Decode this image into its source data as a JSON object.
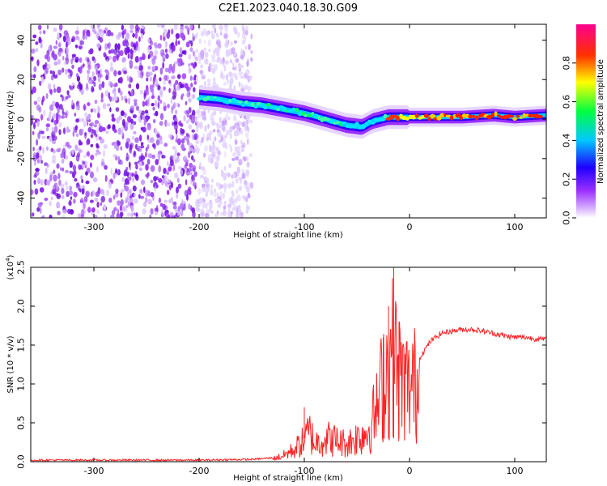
{
  "title": "C2E1.2023.040.18.30.G09",
  "chart_data": [
    {
      "type": "heatmap",
      "xlabel": "Height of straight line (km)",
      "ylabel": "Frequency (Hz)",
      "xlim": [
        -360,
        130
      ],
      "ylim": [
        -50,
        48
      ],
      "x_ticks": [
        -300,
        -200,
        -100,
        0,
        100
      ],
      "x_tick_labels": [
        "-300",
        "-200",
        "-100",
        "0",
        "100"
      ],
      "y_ticks": [
        -40,
        -20,
        0,
        20,
        40
      ],
      "y_tick_labels": [
        "-40",
        "-20",
        "0",
        "20",
        "40"
      ],
      "colorbar": {
        "label": "Normalized spectral amplitude",
        "range": [
          0,
          1
        ],
        "ticks": [
          0,
          0.2,
          0.4,
          0.6,
          0.8
        ],
        "tick_labels": [
          "0.0",
          "0.2",
          "0.4",
          "0.6",
          "0.8"
        ],
        "colors": [
          "#ffffff",
          "#9b30ff",
          "#0000ff",
          "#00e5ff",
          "#00ff00",
          "#ffff00",
          "#ff0000",
          "#ff0080"
        ]
      },
      "ridge": {
        "x": [
          -200,
          -180,
          -160,
          -140,
          -120,
          -100,
          -80,
          -60,
          -45,
          -35,
          -20,
          0,
          20,
          50,
          80,
          100,
          130
        ],
        "y": [
          11,
          10,
          8,
          7,
          5,
          3,
          0,
          -3,
          -4,
          -1,
          1,
          1,
          1,
          1,
          2,
          1,
          2
        ]
      },
      "noise_region": {
        "x": [
          -360,
          -150
        ],
        "y": [
          -50,
          48
        ]
      }
    },
    {
      "type": "line",
      "xlabel": "Height of straight line (km)",
      "ylabel": "SNR (10 * v/v)",
      "y_multiplier": "(x10",
      "y_multiplier_exp": "4",
      "y_multiplier_close": ")",
      "xlim": [
        -360,
        130
      ],
      "ylim": [
        0,
        2.5
      ],
      "x_ticks": [
        -300,
        -200,
        -100,
        0,
        100
      ],
      "x_tick_labels": [
        "-300",
        "-200",
        "-100",
        "0",
        "100"
      ],
      "y_ticks": [
        0,
        0.5,
        1.0,
        1.5,
        2.0,
        2.5
      ],
      "y_tick_labels": [
        "0.0",
        "0.5",
        "1.0",
        "1.5",
        "2.0",
        "2.5"
      ],
      "series": [
        {
          "color": "#ff2020",
          "x": [
            -360,
            -300,
            -200,
            -150,
            -130,
            -120,
            -110,
            -100,
            -95,
            -90,
            -80,
            -70,
            -60,
            -50,
            -40,
            -30,
            -25,
            -20,
            -15,
            -10,
            -5,
            0,
            10,
            20,
            30,
            40,
            50,
            60,
            70,
            80,
            90,
            100,
            110,
            120,
            130
          ],
          "y": [
            0.02,
            0.02,
            0.02,
            0.03,
            0.05,
            0.1,
            0.2,
            0.35,
            0.5,
            0.3,
            0.4,
            0.35,
            0.3,
            0.4,
            0.5,
            0.9,
            1.4,
            1.6,
            1.8,
            1.4,
            1.3,
            1.2,
            1.35,
            1.55,
            1.65,
            1.68,
            1.7,
            1.7,
            1.68,
            1.65,
            1.62,
            1.6,
            1.6,
            1.58,
            1.57
          ]
        }
      ],
      "spikes": [
        {
          "x": -100,
          "y": 0.7
        },
        {
          "x": -25,
          "y": 1.6
        },
        {
          "x": -20,
          "y": 2.0
        },
        {
          "x": -15,
          "y": 2.5
        },
        {
          "x": -10,
          "y": 1.8
        }
      ]
    }
  ]
}
